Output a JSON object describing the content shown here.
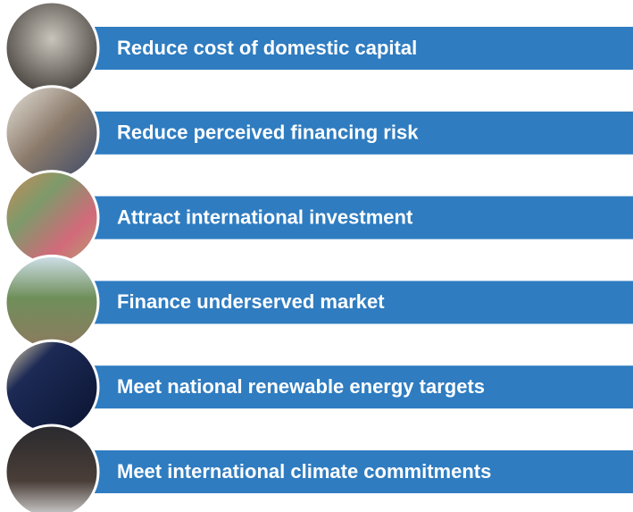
{
  "items": [
    {
      "label": "Reduce cost of domestic capital"
    },
    {
      "label": "Reduce perceived financing risk"
    },
    {
      "label": "Attract international investment"
    },
    {
      "label": "Finance underserved market"
    },
    {
      "label": "Meet national renewable energy targets"
    },
    {
      "label": "Meet international climate commitments"
    }
  ]
}
